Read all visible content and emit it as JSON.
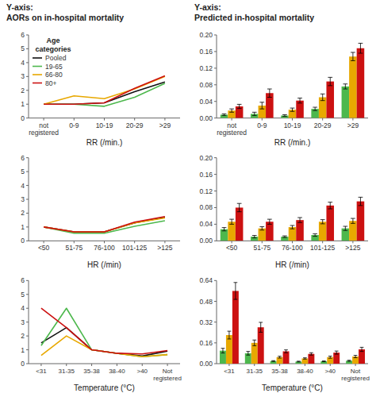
{
  "chart_data": [
    {
      "type": "line",
      "title": "Y-axis:\nAORs on in-hospital mortality",
      "x_label": "RR (/min.)",
      "categories": [
        "not\nregistered",
        "0-9",
        "10-19",
        "20-29",
        ">29"
      ],
      "series": [
        {
          "name": "Pooled",
          "color": "#111111",
          "values": [
            1.0,
            1.0,
            1.1,
            1.9,
            2.6
          ]
        },
        {
          "name": "19-65",
          "color": "#4db84d",
          "values": [
            1.0,
            1.0,
            0.85,
            1.5,
            2.5
          ]
        },
        {
          "name": "66-80",
          "color": "#e8a800",
          "values": [
            1.0,
            1.6,
            1.4,
            2.1,
            3.0
          ]
        },
        {
          "name": "80+",
          "color": "#cc1111",
          "values": [
            1.0,
            1.0,
            1.1,
            2.15,
            3.05
          ]
        }
      ],
      "ylim": [
        0,
        6
      ],
      "yticks": [
        0,
        1,
        2,
        3,
        4,
        5,
        6
      ],
      "legend": "upper left",
      "annotations": [
        "Age\ncategories"
      ]
    },
    {
      "type": "bar",
      "title": "Y-axis:\nPredicted in-hospital mortality",
      "x_label": "RR (/min.)",
      "categories": [
        "not\nregistered",
        "0-9",
        "10-19",
        "20-29",
        ">29"
      ],
      "series": [
        {
          "color": "#4db84d",
          "values": [
            0.008,
            0.01,
            0.006,
            0.022,
            0.076
          ],
          "errors": [
            0.002,
            0.004,
            0.002,
            0.004,
            0.006
          ]
        },
        {
          "color": "#e8a800",
          "values": [
            0.018,
            0.03,
            0.02,
            0.05,
            0.148
          ],
          "errors": [
            0.004,
            0.008,
            0.004,
            0.008,
            0.01
          ]
        },
        {
          "color": "#cc1111",
          "values": [
            0.028,
            0.06,
            0.042,
            0.088,
            0.168
          ],
          "errors": [
            0.005,
            0.01,
            0.006,
            0.01,
            0.012
          ]
        }
      ],
      "ylim": [
        0,
        0.2
      ],
      "yticks": [
        {
          "value": 0,
          "label": "0.00"
        },
        0.04,
        0.08,
        0.12,
        0.16,
        {
          "value": 0.2,
          "label": "0.20"
        }
      ]
    },
    {
      "type": "line",
      "x_label": "HR (/min)",
      "categories": [
        "<50",
        "51-75",
        "76-100",
        "101-125",
        ">125"
      ],
      "series": [
        {
          "color": "#111111",
          "values": [
            1.0,
            0.65,
            0.65,
            1.3,
            1.7
          ]
        },
        {
          "color": "#4db84d",
          "values": [
            1.0,
            0.55,
            0.55,
            1.05,
            1.45
          ]
        },
        {
          "color": "#e8a800",
          "values": [
            1.0,
            0.65,
            0.65,
            1.3,
            1.65
          ]
        },
        {
          "color": "#cc1111",
          "values": [
            1.0,
            0.65,
            0.65,
            1.35,
            1.75
          ]
        }
      ],
      "ylim": [
        0,
        6
      ],
      "yticks": [
        0,
        1,
        2,
        3,
        4,
        5,
        6
      ]
    },
    {
      "type": "bar",
      "x_label": "HR (/min)",
      "categories": [
        "<50",
        "51-75",
        "76-100",
        "101-125",
        ">125"
      ],
      "series": [
        {
          "color": "#4db84d",
          "values": [
            0.028,
            0.01,
            0.01,
            0.014,
            0.03
          ],
          "errors": [
            0.004,
            0.003,
            0.002,
            0.003,
            0.005
          ]
        },
        {
          "color": "#e8a800",
          "values": [
            0.046,
            0.03,
            0.033,
            0.046,
            0.048
          ],
          "errors": [
            0.006,
            0.004,
            0.004,
            0.005,
            0.006
          ]
        },
        {
          "color": "#cc1111",
          "values": [
            0.08,
            0.046,
            0.05,
            0.085,
            0.095
          ],
          "errors": [
            0.01,
            0.006,
            0.006,
            0.008,
            0.01
          ]
        }
      ],
      "ylim": [
        0,
        0.2
      ],
      "yticks": [
        {
          "value": 0,
          "label": "0.00"
        },
        0.04,
        0.08,
        0.12,
        0.16,
        {
          "value": 0.2,
          "label": "0.20"
        }
      ]
    },
    {
      "type": "line",
      "x_label": "Temperature (°C)",
      "categories": [
        "<31",
        "31-35",
        "35-38",
        "38-40",
        ">40",
        "Not\nregistered"
      ],
      "series": [
        {
          "color": "#111111",
          "values": [
            1.5,
            2.6,
            1.0,
            0.75,
            0.55,
            0.9
          ]
        },
        {
          "color": "#4db84d",
          "values": [
            1.3,
            4.0,
            1.0,
            0.75,
            0.5,
            0.65
          ]
        },
        {
          "color": "#e8a800",
          "values": [
            0.6,
            2.0,
            1.0,
            0.75,
            0.5,
            0.65
          ]
        },
        {
          "color": "#cc1111",
          "values": [
            4.0,
            2.6,
            1.0,
            0.75,
            0.7,
            0.95
          ]
        }
      ],
      "ylim": [
        0,
        6
      ],
      "yticks": [
        0,
        1,
        2,
        3,
        4,
        5,
        6
      ]
    },
    {
      "type": "bar",
      "x_label": "Temperature (°C)",
      "categories": [
        "<31",
        "31-35",
        "35-38",
        "38-40",
        ">40",
        "Not\nregistered"
      ],
      "series": [
        {
          "color": "#4db84d",
          "values": [
            0.1,
            0.08,
            0.02,
            0.016,
            0.018,
            0.022
          ],
          "errors": [
            0.018,
            0.014,
            0.003,
            0.003,
            0.003,
            0.004
          ]
        },
        {
          "color": "#e8a800",
          "values": [
            0.22,
            0.16,
            0.05,
            0.04,
            0.05,
            0.055
          ],
          "errors": [
            0.03,
            0.022,
            0.007,
            0.005,
            0.008,
            0.009
          ]
        },
        {
          "color": "#cc1111",
          "values": [
            0.56,
            0.28,
            0.095,
            0.075,
            0.085,
            0.11
          ],
          "errors": [
            0.065,
            0.038,
            0.011,
            0.009,
            0.012,
            0.016
          ]
        }
      ],
      "ylim": [
        0,
        0.64
      ],
      "yticks": [
        {
          "value": 0,
          "label": "0.00"
        },
        0.16,
        0.32,
        0.48,
        0.64
      ]
    }
  ]
}
